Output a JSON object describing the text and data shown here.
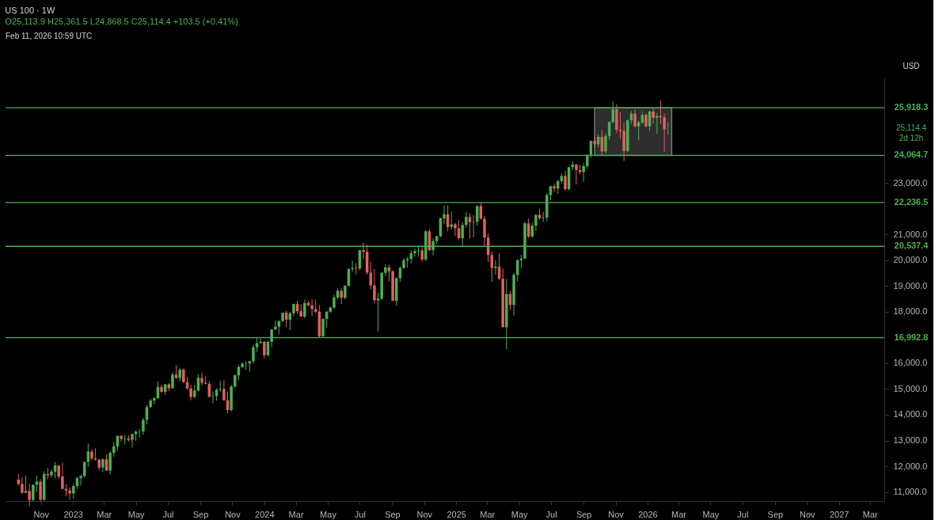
{
  "chart_data": {
    "type": "candlestick",
    "title": "US 100 · 1W",
    "subtitle": "O25,113.9 H25,361.5 L24,868.5 C25,114.4 +103.5 (+0.41%)",
    "x": [
      "2022-09-19",
      "2022-09-26",
      "2022-10-03",
      "2022-10-10",
      "2022-10-17",
      "2022-10-24",
      "2022-10-31",
      "2022-11-07",
      "2022-11-14",
      "2022-11-21",
      "2022-11-28",
      "2022-12-05",
      "2022-12-12",
      "2022-12-19",
      "2022-12-26",
      "2023-01-02",
      "2023-01-09",
      "2023-01-16",
      "2023-01-23",
      "2023-01-30",
      "2023-02-06",
      "2023-02-13",
      "2023-02-20",
      "2023-02-27",
      "2023-03-06",
      "2023-03-13",
      "2023-03-20",
      "2023-03-27",
      "2023-04-03",
      "2023-04-10",
      "2023-04-17",
      "2023-04-24",
      "2023-05-01",
      "2023-05-08",
      "2023-05-15",
      "2023-05-22",
      "2023-05-29",
      "2023-06-05",
      "2023-06-12",
      "2023-06-19",
      "2023-06-26",
      "2023-07-03",
      "2023-07-10",
      "2023-07-17",
      "2023-07-24",
      "2023-07-31",
      "2023-08-07",
      "2023-08-14",
      "2023-08-21",
      "2023-08-28",
      "2023-09-04",
      "2023-09-11",
      "2023-09-18",
      "2023-09-25",
      "2023-10-02",
      "2023-10-09",
      "2023-10-16",
      "2023-10-23",
      "2023-10-30",
      "2023-11-06",
      "2023-11-13",
      "2023-11-20",
      "2023-11-27",
      "2023-12-04",
      "2023-12-11",
      "2023-12-18",
      "2023-12-25",
      "2024-01-01",
      "2024-01-08",
      "2024-01-15",
      "2024-01-22",
      "2024-01-29",
      "2024-02-05",
      "2024-02-12",
      "2024-02-19",
      "2024-02-26",
      "2024-03-04",
      "2024-03-11",
      "2024-03-18",
      "2024-03-25",
      "2024-04-01",
      "2024-04-08",
      "2024-04-15",
      "2024-04-22",
      "2024-04-29",
      "2024-05-06",
      "2024-05-13",
      "2024-05-20",
      "2024-05-27",
      "2024-06-03",
      "2024-06-10",
      "2024-06-17",
      "2024-06-24",
      "2024-07-01",
      "2024-07-08",
      "2024-07-15",
      "2024-07-22",
      "2024-07-29",
      "2024-08-05",
      "2024-08-12",
      "2024-08-19",
      "2024-08-26",
      "2024-09-02",
      "2024-09-09",
      "2024-09-16",
      "2024-09-23",
      "2024-09-30",
      "2024-10-07",
      "2024-10-14",
      "2024-10-21",
      "2024-10-28",
      "2024-11-04",
      "2024-11-11",
      "2024-11-18",
      "2024-11-25",
      "2024-12-02",
      "2024-12-09",
      "2024-12-16",
      "2024-12-23",
      "2024-12-30",
      "2025-01-06",
      "2025-01-13",
      "2025-01-20",
      "2025-01-27",
      "2025-02-03",
      "2025-02-10",
      "2025-02-17",
      "2025-02-24",
      "2025-03-03",
      "2025-03-10",
      "2025-03-17",
      "2025-03-24",
      "2025-03-31",
      "2025-04-07",
      "2025-04-14",
      "2025-04-21",
      "2025-04-28",
      "2025-05-05",
      "2025-05-12",
      "2025-05-19",
      "2025-05-26",
      "2025-06-02",
      "2025-06-09",
      "2025-06-16",
      "2025-06-23",
      "2025-06-30",
      "2025-07-07",
      "2025-07-14",
      "2025-07-21",
      "2025-07-28",
      "2025-08-04",
      "2025-08-11",
      "2025-08-18",
      "2025-08-25",
      "2025-09-01",
      "2025-09-08",
      "2025-09-15",
      "2025-09-22",
      "2025-09-29",
      "2025-10-06",
      "2025-10-13",
      "2025-10-20",
      "2025-10-27",
      "2025-11-03",
      "2025-11-10",
      "2025-11-17",
      "2025-11-24",
      "2025-12-01",
      "2025-12-08",
      "2025-12-15",
      "2025-12-22",
      "2025-12-29",
      "2026-01-05",
      "2026-01-12",
      "2026-01-19",
      "2026-01-26",
      "2026-02-02",
      "2026-02-09"
    ],
    "ohlc": [
      [
        11480,
        11700,
        11250,
        11310
      ],
      [
        11310,
        11560,
        10930,
        10970
      ],
      [
        10970,
        11630,
        10960,
        11040
      ],
      [
        11040,
        11320,
        10440,
        10690
      ],
      [
        10690,
        11300,
        10650,
        11280
      ],
      [
        11280,
        11640,
        11000,
        11400
      ],
      [
        11400,
        11500,
        10630,
        10700
      ],
      [
        10700,
        11800,
        10680,
        11700
      ],
      [
        11700,
        11940,
        11500,
        11650
      ],
      [
        11650,
        11880,
        11560,
        11790
      ],
      [
        11790,
        12160,
        11520,
        12030
      ],
      [
        12030,
        12040,
        11520,
        11600
      ],
      [
        11600,
        12140,
        11120,
        11120
      ],
      [
        11120,
        11300,
        10830,
        11060
      ],
      [
        11060,
        11180,
        10700,
        10940
      ],
      [
        10940,
        11310,
        10730,
        11230
      ],
      [
        11230,
        11590,
        11120,
        11540
      ],
      [
        11540,
        11670,
        11250,
        11620
      ],
      [
        11620,
        12180,
        11550,
        12170
      ],
      [
        12170,
        12880,
        11970,
        12570
      ],
      [
        12570,
        12660,
        12230,
        12300
      ],
      [
        12300,
        12700,
        12220,
        12260
      ],
      [
        12260,
        12280,
        11840,
        11950
      ],
      [
        11950,
        12290,
        11770,
        12270
      ],
      [
        12270,
        12460,
        11820,
        11830
      ],
      [
        11830,
        12580,
        11680,
        12520
      ],
      [
        12520,
        12940,
        12370,
        12770
      ],
      [
        12770,
        13190,
        12600,
        13180
      ],
      [
        13180,
        13210,
        12950,
        13060
      ],
      [
        13060,
        13210,
        12850,
        13080
      ],
      [
        13080,
        13200,
        12950,
        13030
      ],
      [
        13030,
        13270,
        12720,
        13250
      ],
      [
        13250,
        13390,
        12990,
        13340
      ],
      [
        13340,
        13440,
        13120,
        13350
      ],
      [
        13350,
        13880,
        13210,
        13800
      ],
      [
        13800,
        14380,
        13630,
        14300
      ],
      [
        14300,
        14620,
        14250,
        14550
      ],
      [
        14550,
        14690,
        14400,
        14640
      ],
      [
        14640,
        15290,
        14630,
        15080
      ],
      [
        15080,
        15160,
        14840,
        14890
      ],
      [
        14890,
        15200,
        14770,
        15180
      ],
      [
        15180,
        15220,
        14920,
        15030
      ],
      [
        15030,
        15640,
        15010,
        15560
      ],
      [
        15560,
        15930,
        15390,
        15430
      ],
      [
        15430,
        15810,
        15300,
        15750
      ],
      [
        15750,
        15800,
        15230,
        15270
      ],
      [
        15270,
        15470,
        14970,
        15020
      ],
      [
        15020,
        15170,
        14560,
        14690
      ],
      [
        14690,
        15160,
        14650,
        14940
      ],
      [
        14940,
        15560,
        14900,
        15430
      ],
      [
        15430,
        15620,
        15140,
        15240
      ],
      [
        15240,
        15500,
        15170,
        15200
      ],
      [
        15200,
        15310,
        14660,
        14700
      ],
      [
        14700,
        14910,
        14440,
        14720
      ],
      [
        14720,
        15020,
        14550,
        14970
      ],
      [
        14970,
        15320,
        14880,
        15000
      ],
      [
        15000,
        15340,
        14560,
        14560
      ],
      [
        14560,
        14900,
        14060,
        14180
      ],
      [
        14180,
        15160,
        14130,
        15100
      ],
      [
        15100,
        15560,
        15050,
        15530
      ],
      [
        15530,
        15930,
        15360,
        15850
      ],
      [
        15850,
        16040,
        15810,
        15980
      ],
      [
        15980,
        16070,
        15750,
        15990
      ],
      [
        15990,
        16080,
        15670,
        16080
      ],
      [
        16080,
        16710,
        15990,
        16620
      ],
      [
        16620,
        16970,
        16450,
        16780
      ],
      [
        16780,
        16970,
        16780,
        16830
      ],
      [
        16830,
        16860,
        16200,
        16310
      ],
      [
        16310,
        16880,
        16280,
        16830
      ],
      [
        16830,
        17320,
        16620,
        17310
      ],
      [
        17310,
        17660,
        17280,
        17420
      ],
      [
        17420,
        17640,
        17130,
        17640
      ],
      [
        17640,
        17960,
        17590,
        17960
      ],
      [
        17960,
        18040,
        17400,
        17690
      ],
      [
        17690,
        17990,
        17280,
        17940
      ],
      [
        17940,
        18310,
        17820,
        18300
      ],
      [
        18300,
        18420,
        17920,
        18020
      ],
      [
        18020,
        18290,
        17810,
        17810
      ],
      [
        17810,
        18470,
        17750,
        18340
      ],
      [
        18340,
        18420,
        18210,
        18250
      ],
      [
        18250,
        18480,
        17830,
        18100
      ],
      [
        18100,
        18470,
        17940,
        18000
      ],
      [
        18000,
        18260,
        17000,
        17040
      ],
      [
        17040,
        17740,
        17030,
        17720
      ],
      [
        17720,
        18020,
        17380,
        18000
      ],
      [
        18000,
        18200,
        17950,
        18160
      ],
      [
        18160,
        18650,
        18110,
        18550
      ],
      [
        18550,
        18910,
        18480,
        18810
      ],
      [
        18810,
        18910,
        18300,
        18540
      ],
      [
        18540,
        19030,
        18480,
        19000
      ],
      [
        19000,
        19680,
        18990,
        19660
      ],
      [
        19660,
        19980,
        19550,
        19700
      ],
      [
        19700,
        19880,
        19440,
        19680
      ],
      [
        19680,
        20390,
        19610,
        20390
      ],
      [
        20390,
        20690,
        20060,
        20330
      ],
      [
        20330,
        20600,
        19440,
        19520
      ],
      [
        19520,
        19930,
        18870,
        19020
      ],
      [
        19020,
        19660,
        18320,
        18440
      ],
      [
        18440,
        18730,
        17230,
        18510
      ],
      [
        18510,
        19530,
        18450,
        19510
      ],
      [
        19510,
        19850,
        19380,
        19720
      ],
      [
        19720,
        19830,
        19170,
        19570
      ],
      [
        19570,
        19600,
        18420,
        18420
      ],
      [
        18420,
        19340,
        18240,
        19300
      ],
      [
        19300,
        19760,
        19170,
        19700
      ],
      [
        19700,
        20090,
        19660,
        20000
      ],
      [
        20000,
        20130,
        19720,
        20050
      ],
      [
        20050,
        20390,
        19870,
        20270
      ],
      [
        20270,
        20450,
        20130,
        20350
      ],
      [
        20350,
        20560,
        20140,
        20380
      ],
      [
        20380,
        20560,
        19940,
        20030
      ],
      [
        20030,
        21170,
        19960,
        21120
      ],
      [
        21120,
        21200,
        20350,
        20390
      ],
      [
        20390,
        20850,
        20180,
        20740
      ],
      [
        20740,
        20950,
        20630,
        20930
      ],
      [
        20930,
        21650,
        20890,
        21620
      ],
      [
        21620,
        22130,
        21410,
        21780
      ],
      [
        21780,
        22140,
        21120,
        21290
      ],
      [
        21290,
        21880,
        21190,
        21390
      ],
      [
        21390,
        21450,
        20940,
        21240
      ],
      [
        21240,
        21550,
        20800,
        20850
      ],
      [
        20850,
        21470,
        20540,
        21370
      ],
      [
        21370,
        21870,
        21270,
        21680
      ],
      [
        21680,
        21820,
        20850,
        21480
      ],
      [
        21480,
        21750,
        20890,
        21490
      ],
      [
        21490,
        22130,
        21340,
        22100
      ],
      [
        22100,
        22230,
        21580,
        21610
      ],
      [
        21610,
        21720,
        20560,
        20880
      ],
      [
        20880,
        21030,
        19930,
        20200
      ],
      [
        20200,
        20350,
        19150,
        19700
      ],
      [
        19700,
        20010,
        19430,
        19750
      ],
      [
        19750,
        20270,
        19230,
        19280
      ],
      [
        19280,
        19670,
        17400,
        17400
      ],
      [
        17400,
        19270,
        16540,
        18690
      ],
      [
        18690,
        18800,
        18060,
        18260
      ],
      [
        18260,
        19510,
        17850,
        19430
      ],
      [
        19430,
        20040,
        19170,
        20000
      ],
      [
        20000,
        20200,
        19700,
        20060
      ],
      [
        20060,
        21480,
        20050,
        21430
      ],
      [
        21430,
        21620,
        20860,
        20920
      ],
      [
        20920,
        21450,
        20870,
        21340
      ],
      [
        21340,
        21780,
        21130,
        21760
      ],
      [
        21760,
        22000,
        21560,
        21630
      ],
      [
        21630,
        21880,
        21490,
        21650
      ],
      [
        21650,
        22600,
        21510,
        22530
      ],
      [
        22530,
        22890,
        22330,
        22870
      ],
      [
        22870,
        22980,
        22630,
        22780
      ],
      [
        22780,
        23120,
        22580,
        23070
      ],
      [
        23070,
        23370,
        22980,
        23270
      ],
      [
        23270,
        23470,
        22700,
        22760
      ],
      [
        22760,
        23620,
        22710,
        23610
      ],
      [
        23610,
        23850,
        23500,
        23710
      ],
      [
        23710,
        23740,
        22940,
        23500
      ],
      [
        23500,
        23700,
        23340,
        23420
      ],
      [
        23420,
        23770,
        23040,
        23650
      ],
      [
        23650,
        24100,
        23560,
        24090
      ],
      [
        24090,
        24650,
        23980,
        24630
      ],
      [
        24630,
        24790,
        24370,
        24500
      ],
      [
        24500,
        24890,
        24380,
        24790
      ],
      [
        24790,
        25050,
        24050,
        24220
      ],
      [
        24220,
        24920,
        24140,
        24820
      ],
      [
        24820,
        25390,
        24680,
        25360
      ],
      [
        25360,
        26180,
        25320,
        25860
      ],
      [
        25860,
        26060,
        24930,
        25060
      ],
      [
        25060,
        25740,
        24720,
        25010
      ],
      [
        25010,
        25340,
        23850,
        24240
      ],
      [
        24240,
        25460,
        24200,
        25430
      ],
      [
        25430,
        25790,
        25290,
        25690
      ],
      [
        25690,
        25850,
        25140,
        25200
      ],
      [
        25200,
        25420,
        24650,
        25350
      ],
      [
        25350,
        25780,
        25300,
        25640
      ],
      [
        25640,
        25700,
        25150,
        25200
      ],
      [
        25200,
        25800,
        25030,
        25770
      ],
      [
        25770,
        25900,
        25300,
        25530
      ],
      [
        25530,
        25700,
        24900,
        25600
      ],
      [
        25600,
        26200,
        25300,
        25550
      ],
      [
        25550,
        25700,
        24200,
        25080
      ],
      [
        25113.9,
        25361.5,
        24868.5,
        25114.4
      ]
    ],
    "colors": [
      "#e0605f",
      "#e0605f",
      "#4caf50",
      "#e0605f",
      "#4caf50",
      "#4caf50",
      "#e0605f",
      "#4caf50",
      "#e0605f",
      "#4caf50",
      "#4caf50",
      "#e0605f",
      "#e0605f",
      "#e0605f",
      "#e0605f",
      "#4caf50",
      "#4caf50",
      "#4caf50",
      "#4caf50",
      "#4caf50",
      "#e0605f",
      "#e0605f",
      "#e0605f",
      "#4caf50",
      "#e0605f",
      "#4caf50",
      "#4caf50",
      "#4caf50",
      "#e0605f",
      "#4caf50",
      "#e0605f",
      "#4caf50",
      "#4caf50",
      "#4caf50",
      "#4caf50",
      "#4caf50",
      "#4caf50",
      "#4caf50",
      "#4caf50",
      "#e0605f",
      "#4caf50",
      "#e0605f",
      "#4caf50",
      "#e0605f",
      "#4caf50",
      "#e0605f",
      "#e0605f",
      "#e0605f",
      "#4caf50",
      "#4caf50",
      "#e0605f",
      "#e0605f",
      "#e0605f",
      "#4caf50",
      "#4caf50",
      "#4caf50",
      "#e0605f",
      "#e0605f",
      "#4caf50",
      "#4caf50",
      "#4caf50",
      "#4caf50",
      "#4caf50",
      "#4caf50",
      "#4caf50",
      "#4caf50",
      "#4caf50",
      "#e0605f",
      "#4caf50",
      "#4caf50",
      "#4caf50",
      "#4caf50",
      "#4caf50",
      "#e0605f",
      "#4caf50",
      "#4caf50",
      "#e0605f",
      "#e0605f",
      "#4caf50",
      "#e0605f",
      "#e0605f",
      "#e0605f",
      "#e0605f",
      "#4caf50",
      "#4caf50",
      "#4caf50",
      "#4caf50",
      "#4caf50",
      "#e0605f",
      "#4caf50",
      "#4caf50",
      "#4caf50",
      "#e0605f",
      "#4caf50",
      "#e0605f",
      "#e0605f",
      "#e0605f",
      "#e0605f",
      "#4caf50",
      "#4caf50",
      "#4caf50",
      "#e0605f",
      "#e0605f",
      "#4caf50",
      "#4caf50",
      "#4caf50",
      "#4caf50",
      "#4caf50",
      "#4caf50",
      "#4caf50",
      "#e0605f",
      "#4caf50",
      "#e0605f",
      "#4caf50",
      "#4caf50",
      "#4caf50",
      "#4caf50",
      "#e0605f",
      "#4caf50",
      "#e0605f",
      "#e0605f",
      "#4caf50",
      "#4caf50",
      "#e0605f",
      "#4caf50",
      "#4caf50",
      "#e0605f",
      "#e0605f",
      "#e0605f",
      "#e0605f",
      "#4caf50",
      "#e0605f",
      "#e0605f",
      "#4caf50",
      "#e0605f",
      "#4caf50",
      "#4caf50",
      "#4caf50",
      "#4caf50",
      "#e0605f",
      "#4caf50",
      "#4caf50",
      "#e0605f",
      "#4caf50",
      "#4caf50",
      "#4caf50",
      "#e0605f",
      "#4caf50",
      "#4caf50",
      "#e0605f",
      "#4caf50",
      "#4caf50",
      "#e0605f",
      "#e0605f",
      "#4caf50",
      "#4caf50",
      "#4caf50",
      "#e0605f",
      "#4caf50",
      "#e0605f",
      "#4caf50",
      "#4caf50",
      "#4caf50",
      "#e0605f",
      "#e0605f",
      "#e0605f",
      "#4caf50",
      "#4caf50",
      "#e0605f",
      "#4caf50",
      "#4caf50",
      "#e0605f",
      "#4caf50",
      "#e0605f",
      "#4caf50",
      "#e0605f",
      "#e0605f",
      "#4caf50"
    ],
    "xlim": [
      "2022-09-02",
      "2027-03-21"
    ],
    "xticks": [
      {
        "value": "2022-11-01",
        "label": "Nov"
      },
      {
        "value": "2023-01-01",
        "label": "2023"
      },
      {
        "value": "2023-03-01",
        "label": "Mar"
      },
      {
        "value": "2023-05-01",
        "label": "May"
      },
      {
        "value": "2023-07-01",
        "label": "Jul"
      },
      {
        "value": "2023-09-01",
        "label": "Sep"
      },
      {
        "value": "2023-11-01",
        "label": "Nov"
      },
      {
        "value": "2024-01-01",
        "label": "2024"
      },
      {
        "value": "2024-03-01",
        "label": "Mar"
      },
      {
        "value": "2024-05-01",
        "label": "May"
      },
      {
        "value": "2024-07-01",
        "label": "Jul"
      },
      {
        "value": "2024-09-01",
        "label": "Sep"
      },
      {
        "value": "2024-11-01",
        "label": "Nov"
      },
      {
        "value": "2025-01-01",
        "label": "2025"
      },
      {
        "value": "2025-03-01",
        "label": "Mar"
      },
      {
        "value": "2025-05-01",
        "label": "May"
      },
      {
        "value": "2025-07-01",
        "label": "Jul"
      },
      {
        "value": "2025-09-01",
        "label": "Sep"
      },
      {
        "value": "2025-11-01",
        "label": "Nov"
      },
      {
        "value": "2026-01-01",
        "label": "2026"
      },
      {
        "value": "2026-03-01",
        "label": "Mar"
      },
      {
        "value": "2026-05-01",
        "label": "May"
      },
      {
        "value": "2026-07-01",
        "label": "Jul"
      },
      {
        "value": "2026-09-01",
        "label": "Sep"
      },
      {
        "value": "2026-11-01",
        "label": "Nov"
      },
      {
        "value": "2027-01-01",
        "label": "2027"
      },
      {
        "value": "2027-03-01",
        "label": "Mar"
      }
    ],
    "ylim": [
      10650,
      27090
    ],
    "yticks": [
      {
        "value": 11000,
        "label": "11,000.0"
      },
      {
        "value": 12000,
        "label": "12,000.0"
      },
      {
        "value": 13000,
        "label": "13,000.0"
      },
      {
        "value": 14000,
        "label": "14,000.0"
      },
      {
        "value": 15000,
        "label": "15,000.0"
      },
      {
        "value": 16000,
        "label": "16,000.0"
      },
      {
        "value": 18000,
        "label": "18,000.0"
      },
      {
        "value": 19000,
        "label": "19,000.0"
      },
      {
        "value": 20000,
        "label": "20,000.0"
      },
      {
        "value": 21000,
        "label": "21,000.0"
      },
      {
        "value": 23000,
        "label": "23,000.0"
      }
    ],
    "ref_lines": [
      {
        "axis": "y",
        "value": 25918.3,
        "label": "25,918.3",
        "color": "#4caf50"
      },
      {
        "axis": "y",
        "value": 24064.7,
        "label": "24,064.7",
        "color": "#4caf50"
      },
      {
        "axis": "y",
        "value": 22236.5,
        "label": "22,236.5",
        "color": "#4caf50"
      },
      {
        "axis": "y",
        "value": 20537.4,
        "label": "20,537.4",
        "color": "#4caf50"
      },
      {
        "axis": "y",
        "value": 16992.8,
        "label": "16,992.8",
        "color": "#4caf50"
      }
    ],
    "bands": [
      {
        "axis": "x",
        "from": "2025-09-22",
        "to": "2026-02-16",
        "color": "#555555"
      }
    ],
    "annotations": [
      "Feb 11, 2026 10:59 UTC",
      "USD",
      "25,114.4",
      "2d 12h"
    ],
    "grid": false
  }
}
